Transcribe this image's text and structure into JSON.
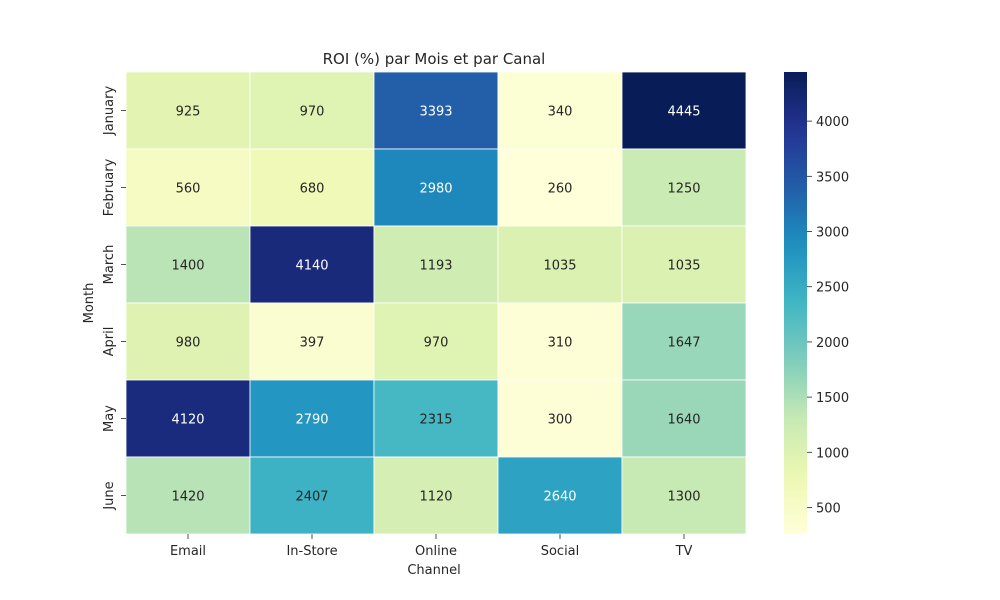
{
  "chart_data": {
    "type": "heatmap",
    "title": "ROI (%) par Mois et par Canal",
    "xlabel": "Channel",
    "ylabel": "Month",
    "x_categories": [
      "Email",
      "In-Store",
      "Online",
      "Social",
      "TV"
    ],
    "y_categories": [
      "January",
      "February",
      "March",
      "April",
      "May",
      "June"
    ],
    "values": [
      [
        925,
        970,
        3393,
        340,
        4445
      ],
      [
        560,
        680,
        2980,
        260,
        1250
      ],
      [
        1400,
        4140,
        1193,
        1035,
        1035
      ],
      [
        980,
        397,
        970,
        310,
        1647
      ],
      [
        4120,
        2790,
        2315,
        300,
        1640
      ],
      [
        1420,
        2407,
        1120,
        2640,
        1300
      ]
    ],
    "vmin": 260,
    "vmax": 4445,
    "colormap": "YlGnBu",
    "colorbar_ticks": [
      500,
      1000,
      1500,
      2000,
      2500,
      3000,
      3500,
      4000
    ],
    "annotations": true,
    "grid": false,
    "legend_position": "right"
  }
}
